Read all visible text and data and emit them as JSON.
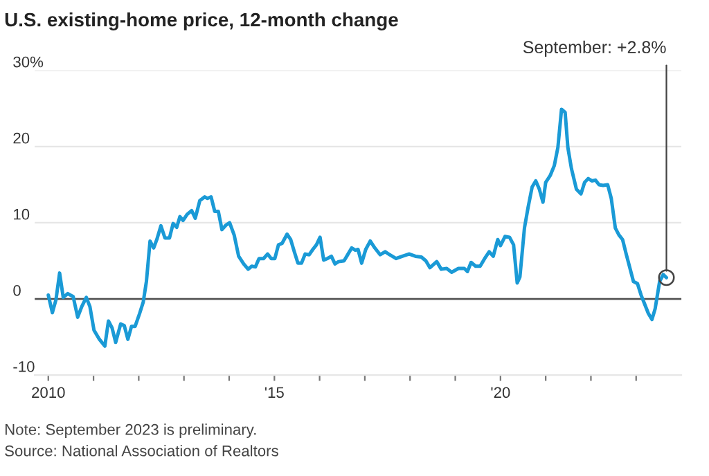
{
  "chart_data": {
    "type": "line",
    "title": "U.S. existing-home price, 12-month change",
    "x": [
      2010.0,
      2010.09,
      2010.17,
      2010.25,
      2010.33,
      2010.43,
      2010.55,
      2010.65,
      2010.74,
      2010.84,
      2010.92,
      2011.01,
      2011.13,
      2011.25,
      2011.33,
      2011.41,
      2011.49,
      2011.6,
      2011.68,
      2011.76,
      2011.84,
      2011.92,
      2012.02,
      2012.1,
      2012.17,
      2012.25,
      2012.33,
      2012.4,
      2012.49,
      2012.58,
      2012.68,
      2012.76,
      2012.84,
      2012.91,
      2012.98,
      2013.07,
      2013.17,
      2013.25,
      2013.35,
      2013.46,
      2013.52,
      2013.6,
      2013.68,
      2013.76,
      2013.84,
      2013.93,
      2014.01,
      2014.11,
      2014.21,
      2014.32,
      2014.42,
      2014.5,
      2014.58,
      2014.66,
      2014.76,
      2014.85,
      2014.93,
      2015.01,
      2015.09,
      2015.17,
      2015.28,
      2015.36,
      2015.44,
      2015.52,
      2015.6,
      2015.68,
      2015.77,
      2015.85,
      2015.93,
      2016.01,
      2016.09,
      2016.17,
      2016.26,
      2016.34,
      2016.42,
      2016.54,
      2016.63,
      2016.71,
      2016.79,
      2016.85,
      2016.93,
      2017.02,
      2017.12,
      2017.22,
      2017.34,
      2017.45,
      2017.55,
      2017.69,
      2017.83,
      2017.98,
      2018.12,
      2018.25,
      2018.35,
      2018.44,
      2018.59,
      2018.69,
      2018.81,
      2018.92,
      2019.07,
      2019.2,
      2019.27,
      2019.35,
      2019.45,
      2019.55,
      2019.65,
      2019.75,
      2019.84,
      2019.94,
      2020.0,
      2020.1,
      2020.2,
      2020.29,
      2020.37,
      2020.43,
      2020.53,
      2020.61,
      2020.7,
      2020.78,
      2020.86,
      2020.94,
      2021.0,
      2021.1,
      2021.19,
      2021.27,
      2021.35,
      2021.43,
      2021.49,
      2021.57,
      2021.68,
      2021.78,
      2021.86,
      2021.94,
      2022.02,
      2022.1,
      2022.18,
      2022.27,
      2022.37,
      2022.45,
      2022.54,
      2022.62,
      2022.7,
      2022.78,
      2022.86,
      2022.94,
      2023.03,
      2023.11,
      2023.19,
      2023.27,
      2023.35,
      2023.42,
      2023.52,
      2023.6,
      2023.67
    ],
    "series": [
      {
        "color": "#1a9ad6",
        "values": [
          0.5,
          -1.8,
          -0.1,
          3.4,
          0.2,
          0.7,
          0.3,
          -2.4,
          -1.0,
          0.2,
          -1.0,
          -4.1,
          -5.3,
          -6.2,
          -2.9,
          -3.8,
          -5.7,
          -3.3,
          -3.5,
          -5.3,
          -3.6,
          -3.6,
          -1.9,
          -0.4,
          2.3,
          7.6,
          6.7,
          7.8,
          9.6,
          8.0,
          8.0,
          9.9,
          9.4,
          10.8,
          10.3,
          11.1,
          11.6,
          10.6,
          12.9,
          13.4,
          13.2,
          13.4,
          11.5,
          11.5,
          9.1,
          9.7,
          10.0,
          8.4,
          5.6,
          4.6,
          3.9,
          4.3,
          4.2,
          5.3,
          5.3,
          5.9,
          5.3,
          5.3,
          7.1,
          7.3,
          8.5,
          7.8,
          6.2,
          4.7,
          4.7,
          5.9,
          5.8,
          6.5,
          7.1,
          8.1,
          5.1,
          5.3,
          5.6,
          4.6,
          4.9,
          5.0,
          5.9,
          6.7,
          6.4,
          6.5,
          4.7,
          6.5,
          7.6,
          6.7,
          5.8,
          6.2,
          5.8,
          5.3,
          5.6,
          5.9,
          5.6,
          5.5,
          5.0,
          4.1,
          4.9,
          3.9,
          4.0,
          3.5,
          4.0,
          4.0,
          3.6,
          4.8,
          4.3,
          4.3,
          5.3,
          6.2,
          5.6,
          7.8,
          7.0,
          8.2,
          8.1,
          7.1,
          2.1,
          2.9,
          9.3,
          12.0,
          14.7,
          15.5,
          14.4,
          12.7,
          15.3,
          16.2,
          17.5,
          19.9,
          24.9,
          24.5,
          19.9,
          17.1,
          14.4,
          13.8,
          15.3,
          15.8,
          15.5,
          15.6,
          15.0,
          14.9,
          15.0,
          13.2,
          9.3,
          8.4,
          7.8,
          5.9,
          4.1,
          2.3,
          2.0,
          0.5,
          -0.7,
          -1.9,
          -2.7,
          -1.3,
          2.3,
          3.2,
          2.8
        ]
      }
    ],
    "xlim": [
      2009.7,
      2024.0
    ],
    "xticks": [
      {
        "value": 2010,
        "label": "2010"
      },
      {
        "value": 2011,
        "label": null
      },
      {
        "value": 2012,
        "label": null
      },
      {
        "value": 2013,
        "label": null
      },
      {
        "value": 2014,
        "label": null
      },
      {
        "value": 2015,
        "label": "'15"
      },
      {
        "value": 2016,
        "label": null
      },
      {
        "value": 2017,
        "label": null
      },
      {
        "value": 2018,
        "label": null
      },
      {
        "value": 2019,
        "label": null
      },
      {
        "value": 2020,
        "label": "'20"
      },
      {
        "value": 2021,
        "label": null
      },
      {
        "value": 2022,
        "label": null
      },
      {
        "value": 2023,
        "label": null
      }
    ],
    "ylim": [
      -10,
      30
    ],
    "yticks": [
      -10,
      0,
      10,
      20,
      {
        "value": 30,
        "label": "30%"
      }
    ],
    "grid": "y",
    "ref_lines": [
      {
        "axis": "y",
        "value": 0,
        "color": "#555555"
      }
    ],
    "annotations": [
      {
        "text": "September: +2.8%",
        "x": 2023.67,
        "y": 2.8
      },
      "Note: September 2023 is preliminary.",
      "Source: National Association of Realtors"
    ]
  }
}
